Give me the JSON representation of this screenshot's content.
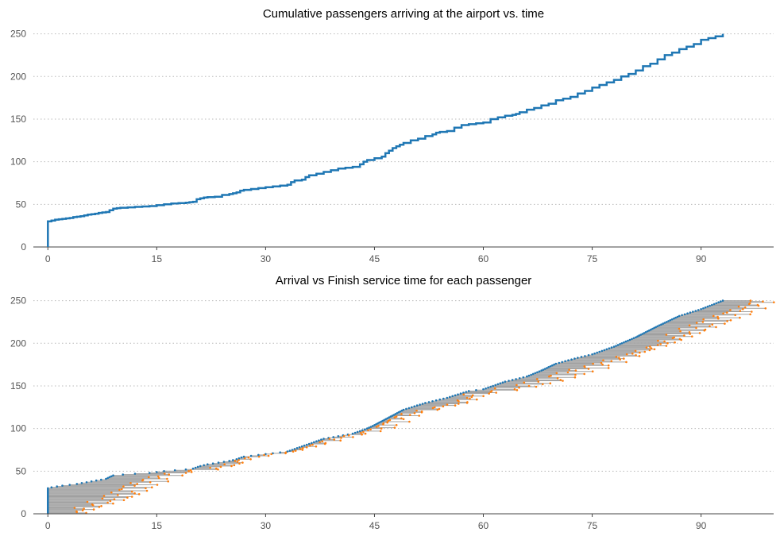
{
  "chart_data": [
    {
      "type": "line",
      "title": "Cumulative passengers arriving at the airport vs. time",
      "xlabel": "",
      "ylabel": "",
      "xlim": [
        -2,
        100
      ],
      "ylim": [
        0,
        258
      ],
      "xticks": [
        0,
        15,
        30,
        45,
        60,
        75,
        90
      ],
      "yticks": [
        0,
        50,
        100,
        150,
        200,
        250
      ],
      "grid": "y-dotted",
      "color": "#1f77b4",
      "x": [
        0,
        0,
        0.5,
        1,
        1.5,
        2,
        2.5,
        3,
        3.5,
        4,
        4.5,
        5,
        5.5,
        6,
        6.5,
        7,
        7.5,
        8,
        8.5,
        9,
        9.5,
        10,
        11,
        12,
        13,
        14,
        15,
        16,
        17,
        18,
        19,
        19.5,
        20,
        20.5,
        21,
        21.5,
        22,
        23,
        24,
        25,
        25.5,
        26,
        26.5,
        27,
        28,
        29,
        30,
        31,
        32,
        33,
        33.5,
        34,
        35,
        35.5,
        36,
        37,
        38,
        39,
        40,
        41,
        42,
        43,
        43.5,
        44,
        45,
        46,
        46.5,
        47,
        47.5,
        48,
        48.5,
        49,
        50,
        51,
        52,
        53,
        53.5,
        54,
        55,
        56,
        57,
        58,
        59,
        60,
        61,
        62,
        63,
        64,
        64.5,
        65,
        66,
        67,
        68,
        69,
        70,
        71,
        72,
        73,
        74,
        75,
        76,
        77,
        78,
        79,
        80,
        81,
        82,
        83,
        84,
        85,
        86,
        87,
        88,
        89,
        90,
        91,
        92,
        93
      ],
      "y": [
        0,
        30,
        31,
        32,
        32.5,
        33,
        33.5,
        34,
        35,
        35.5,
        36,
        37,
        38,
        38.5,
        39,
        40,
        40.5,
        41,
        43,
        45,
        45.5,
        46,
        46.5,
        47,
        47.5,
        48,
        49,
        50,
        51,
        51.5,
        52,
        52.5,
        53,
        56,
        57,
        58,
        58.5,
        59,
        61,
        62,
        63,
        64,
        66,
        67,
        68,
        69,
        70,
        71,
        72,
        73,
        76,
        78,
        79,
        82,
        84,
        86,
        88,
        90,
        92,
        93,
        94,
        97,
        100,
        102,
        104,
        106,
        110,
        113,
        116,
        118,
        120,
        122,
        125,
        127,
        130,
        132,
        134,
        135,
        136,
        140,
        143,
        144,
        145,
        146,
        150,
        152,
        154,
        155,
        156,
        158,
        161,
        163,
        166,
        168,
        172,
        174,
        176,
        180,
        183,
        187,
        190,
        193,
        196,
        200,
        203,
        207,
        212,
        215,
        220,
        225,
        228,
        232,
        235,
        238,
        243,
        245,
        247,
        250
      ]
    },
    {
      "type": "scatter",
      "title": "Arrival vs Finish service time for each passenger",
      "xlabel": "",
      "ylabel": "",
      "xlim": [
        -2,
        100
      ],
      "ylim": [
        0,
        258
      ],
      "xticks": [
        0,
        15,
        30,
        45,
        60,
        75,
        90
      ],
      "yticks": [
        0,
        50,
        100,
        150,
        200,
        250
      ],
      "grid": "y-dotted",
      "series": [
        {
          "color": "#1f77b4"
        },
        {
          "color": "#ff7f0e"
        },
        {
          "color": "#a0a0a0"
        }
      ],
      "arrival_anchors": {
        "x": [
          0,
          0,
          0.5,
          2,
          4,
          6,
          8,
          9,
          11,
          14,
          16,
          19,
          20,
          21,
          22,
          25,
          26,
          27,
          30,
          33,
          35,
          38,
          42,
          44,
          45,
          47,
          49,
          52,
          55,
          58,
          60,
          63,
          66,
          68,
          70,
          73,
          75,
          78,
          81,
          84,
          87,
          90,
          93
        ],
        "y": [
          0,
          30,
          31,
          33,
          35,
          38,
          41,
          45,
          46.5,
          48,
          50,
          52,
          53,
          56,
          58,
          62,
          64,
          67,
          70,
          73,
          79,
          88,
          94,
          100,
          104,
          113,
          122,
          130,
          136,
          144,
          146,
          155,
          161,
          168,
          176,
          183,
          187,
          196,
          207,
          220,
          232,
          240,
          250
        ]
      },
      "finish_anchors": {
        "x": [
          3,
          9,
          12,
          15,
          19,
          24,
          26,
          30,
          34,
          39,
          44,
          48,
          53,
          56,
          58,
          62,
          65,
          68,
          71,
          74,
          77,
          80,
          84,
          88,
          92,
          95,
          97
        ],
        "y": [
          2,
          20,
          35,
          45,
          50,
          56,
          65,
          70,
          78,
          90,
          100,
          115,
          125,
          130,
          140,
          145,
          150,
          156,
          165,
          172,
          180,
          188,
          200,
          215,
          230,
          240,
          248
        ]
      }
    }
  ]
}
